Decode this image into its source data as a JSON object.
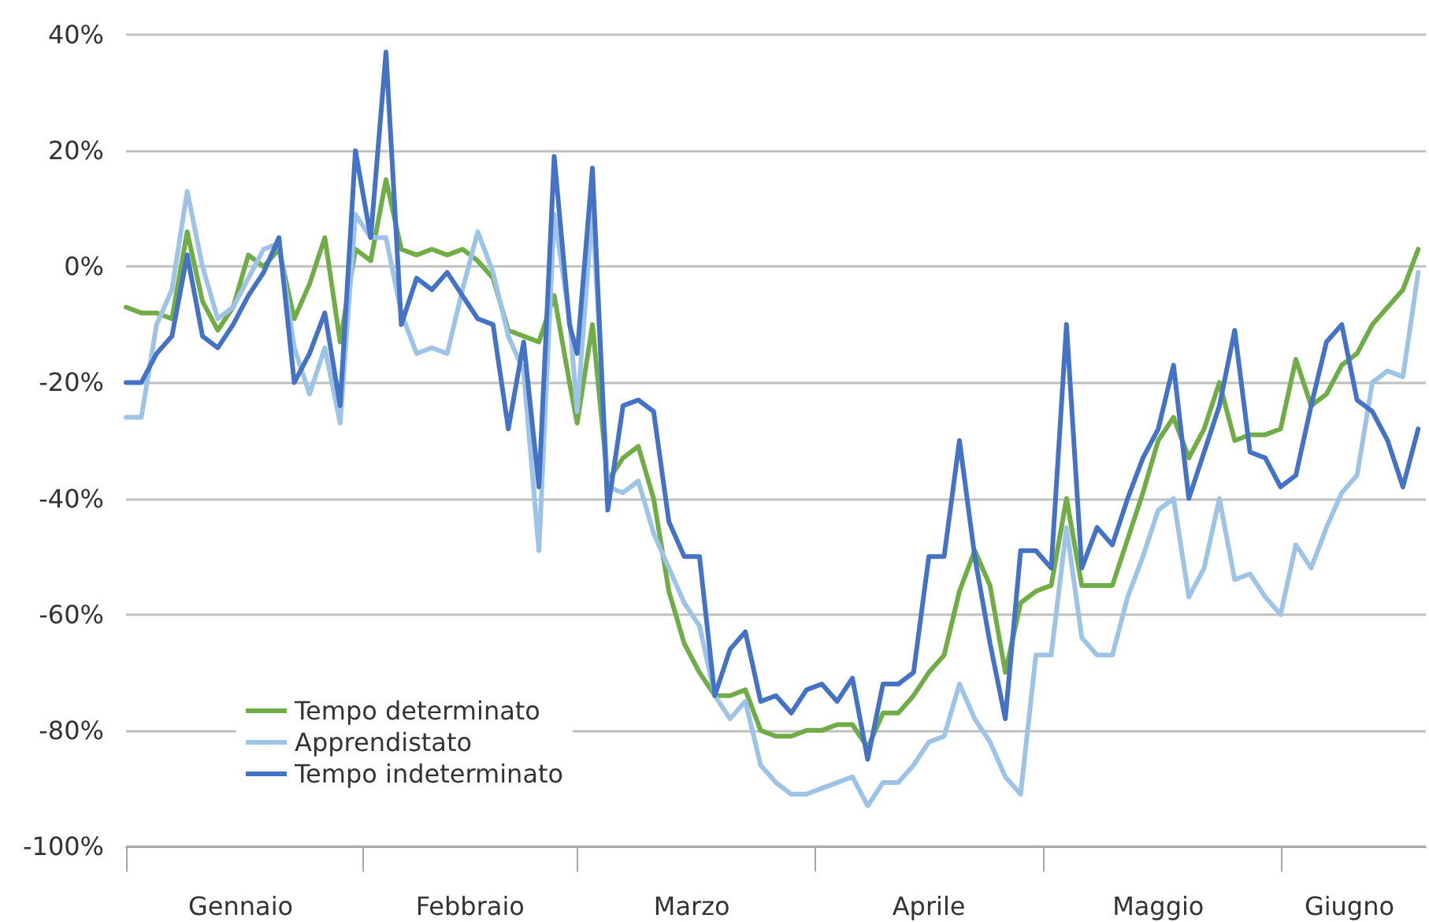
{
  "chart_data": {
    "type": "line",
    "x": [
      "--01-01",
      "--01-03",
      "--01-05",
      "--01-07",
      "--01-09",
      "--01-11",
      "--01-13",
      "--01-15",
      "--01-17",
      "--01-19",
      "--01-21",
      "--01-23",
      "--01-25",
      "--01-27",
      "--01-29",
      "--01-31",
      "--02-02",
      "--02-04",
      "--02-06",
      "--02-08",
      "--02-10",
      "--02-12",
      "--02-14",
      "--02-16",
      "--02-18",
      "--02-20",
      "--02-22",
      "--02-24",
      "--02-26",
      "--02-28",
      "--03-01",
      "--03-03",
      "--03-05",
      "--03-07",
      "--03-09",
      "--03-11",
      "--03-13",
      "--03-15",
      "--03-17",
      "--03-19",
      "--03-21",
      "--03-23",
      "--03-25",
      "--03-27",
      "--03-29",
      "--03-31",
      "--04-02",
      "--04-04",
      "--04-06",
      "--04-08",
      "--04-10",
      "--04-12",
      "--04-14",
      "--04-16",
      "--04-18",
      "--04-20",
      "--04-22",
      "--04-24",
      "--04-26",
      "--04-28",
      "--04-30",
      "--05-02",
      "--05-04",
      "--05-06",
      "--05-08",
      "--05-10",
      "--05-12",
      "--05-14",
      "--05-16",
      "--05-18",
      "--05-20",
      "--05-22",
      "--05-24",
      "--05-26",
      "--05-28",
      "--05-30",
      "--06-01",
      "--06-03",
      "--06-05",
      "--06-07",
      "--06-09",
      "--06-11",
      "--06-13",
      "--06-15",
      "--06-17",
      "--06-19"
    ],
    "series": [
      {
        "name": "Tempo determinato",
        "color": "#70ad47",
        "values": [
          -7,
          -8,
          -8,
          -9,
          6,
          -6,
          -11,
          -7,
          2,
          0,
          3,
          -9,
          -3,
          5,
          -13,
          3,
          1,
          15,
          3,
          2,
          3,
          2,
          3,
          1,
          -2,
          -11,
          -12,
          -13,
          -5,
          -20,
          -27,
          -10,
          -37,
          -33,
          -31,
          -40,
          -56,
          -65,
          -70,
          -74,
          -74,
          -73,
          -80,
          -81,
          -81,
          -80,
          -80,
          -79,
          -79,
          -83,
          -77,
          -77,
          -74,
          -70,
          -67,
          -56,
          -49,
          -55,
          -70,
          -58,
          -56,
          -55,
          -40,
          -55,
          -55,
          -55,
          -47,
          -39,
          -30,
          -26,
          -33,
          -28,
          -20,
          -30,
          -29,
          -29,
          -28,
          -16,
          -24,
          -22,
          -17,
          -15,
          -10,
          -7,
          -4,
          3
        ]
      },
      {
        "name": "Apprendistato",
        "color": "#9dc3e6",
        "values": [
          -26,
          -26,
          -10,
          -4,
          13,
          0,
          -9,
          -7,
          -2,
          3,
          4,
          -14,
          -22,
          -14,
          -27,
          9,
          5,
          5,
          -8,
          -15,
          -14,
          -15,
          -4,
          6,
          -1,
          -12,
          -18,
          -49,
          9,
          -9,
          -25,
          10,
          -38,
          -39,
          -37,
          -46,
          -52,
          -58,
          -62,
          -74,
          -78,
          -75,
          -86,
          -89,
          -91,
          -91,
          -90,
          -89,
          -88,
          -93,
          -89,
          -89,
          -86,
          -82,
          -81,
          -72,
          -78,
          -82,
          -88,
          -91,
          -67,
          -67,
          -45,
          -64,
          -67,
          -67,
          -57,
          -50,
          -42,
          -40,
          -57,
          -52,
          -40,
          -54,
          -53,
          -57,
          -60,
          -48,
          -52,
          -45,
          -39,
          -36,
          -20,
          -18,
          -19,
          -1
        ]
      },
      {
        "name": "Tempo indeterminato",
        "color": "#4472c4",
        "values": [
          -20,
          -20,
          -15,
          -12,
          2,
          -12,
          -14,
          -10,
          -5,
          -1,
          5,
          -20,
          -15,
          -8,
          -24,
          20,
          5,
          37,
          -10,
          -2,
          -4,
          -1,
          -5,
          -9,
          -10,
          -28,
          -13,
          -38,
          19,
          -10,
          -15,
          17,
          -42,
          -24,
          -23,
          -25,
          -44,
          -50,
          -50,
          -74,
          -66,
          -63,
          -75,
          -74,
          -77,
          -73,
          -72,
          -75,
          -71,
          -85,
          -72,
          -72,
          -70,
          -50,
          -50,
          -30,
          -50,
          -65,
          -78,
          -49,
          -49,
          -52,
          -10,
          -52,
          -45,
          -48,
          -40,
          -33,
          -28,
          -17,
          -40,
          -32,
          -24,
          -11,
          -32,
          -33,
          -38,
          -36,
          -24,
          -13,
          -10,
          -23,
          -25,
          -30,
          -38,
          -28
        ]
      }
    ],
    "xlim": [
      "--01-01",
      "--06-20"
    ],
    "xticks": [
      {
        "value": "--01-01",
        "label": null
      },
      {
        "value": "--01-16",
        "label": "Gennaio"
      },
      {
        "value": "--02-01",
        "label": null
      },
      {
        "value": "--02-15",
        "label": "Febbraio"
      },
      {
        "value": "--03-01",
        "label": null
      },
      {
        "value": "--03-16",
        "label": "Marzo"
      },
      {
        "value": "--04-01",
        "label": null
      },
      {
        "value": "--04-16",
        "label": "Aprile"
      },
      {
        "value": "--05-01",
        "label": null
      },
      {
        "value": "--05-16",
        "label": "Maggio"
      },
      {
        "value": "--06-01",
        "label": null
      },
      {
        "value": "--06-10",
        "label": "Giugno"
      }
    ],
    "ylim": [
      -100,
      40
    ],
    "yticks": [
      {
        "value": -100,
        "label": "-100%"
      },
      {
        "value": -80,
        "label": "-80%"
      },
      {
        "value": -60,
        "label": "-60%"
      },
      {
        "value": -40,
        "label": "-40%"
      },
      {
        "value": -20,
        "label": "-20%"
      },
      {
        "value": 0,
        "label": "0%"
      },
      {
        "value": 20,
        "label": "20%"
      },
      {
        "value": 40,
        "label": "40%"
      }
    ],
    "grid": "y",
    "legend": "bottom left"
  }
}
